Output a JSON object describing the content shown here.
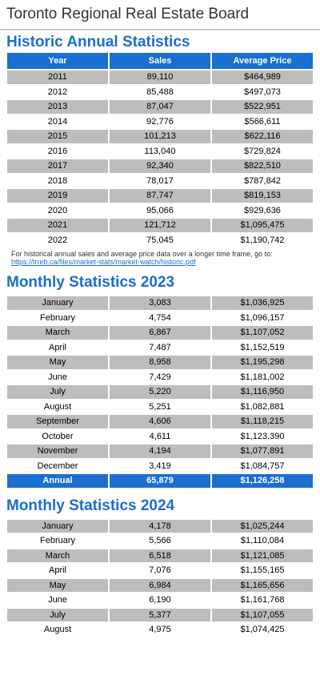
{
  "header": {
    "title": "Toronto Regional Real Estate Board"
  },
  "historic": {
    "title": "Historic Annual Statistics",
    "columns": [
      "Year",
      "Sales",
      "Average Price"
    ],
    "rows": [
      [
        "2011",
        "89,110",
        "$464,989"
      ],
      [
        "2012",
        "85,488",
        "$497,073"
      ],
      [
        "2013",
        "87,047",
        "$522,951"
      ],
      [
        "2014",
        "92,776",
        "$566,611"
      ],
      [
        "2015",
        "101,213",
        "$622,116"
      ],
      [
        "2016",
        "113,040",
        "$729,824"
      ],
      [
        "2017",
        "92,340",
        "$822,510"
      ],
      [
        "2018",
        "78,017",
        "$787,842"
      ],
      [
        "2019",
        "87,747",
        "$819,153"
      ],
      [
        "2020",
        "95,066",
        "$929,636"
      ],
      [
        "2021",
        "121,712",
        "$1,095,475"
      ],
      [
        "2022",
        "75,045",
        "$1,190,742"
      ]
    ],
    "note": "For historical annual sales and average price data over a longer time frame, go to:",
    "link": "https://trreb.ca/files/market-stats/market-watch/historic.pdf"
  },
  "monthly2023": {
    "title": "Monthly Statistics 2023",
    "rows": [
      [
        "January",
        "3,083",
        "$1,036,925"
      ],
      [
        "February",
        "4,754",
        "$1,096,157"
      ],
      [
        "March",
        "6,867",
        "$1,107,052"
      ],
      [
        "April",
        "7,487",
        "$1,152,519"
      ],
      [
        "May",
        "8,958",
        "$1,195,298"
      ],
      [
        "June",
        "7,429",
        "$1,181,002"
      ],
      [
        "July",
        "5,220",
        "$1,116,950"
      ],
      [
        "August",
        "5,251",
        "$1,082,881"
      ],
      [
        "September",
        "4,606",
        "$1,118,215"
      ],
      [
        "October",
        "4,611",
        "$1,123,390"
      ],
      [
        "November",
        "4,194",
        "$1,077,891"
      ],
      [
        "December",
        "3,419",
        "$1,084,757"
      ]
    ],
    "annual": [
      "Annual",
      "65,879",
      "$1,126,258"
    ]
  },
  "monthly2024": {
    "title": "Monthly Statistics 2024",
    "rows": [
      [
        "January",
        "4,178",
        "$1,025,244"
      ],
      [
        "February",
        "5,566",
        "$1,110,084"
      ],
      [
        "March",
        "6,518",
        "$1,121,085"
      ],
      [
        "April",
        "7,076",
        "$1,155,165"
      ],
      [
        "May",
        "6,984",
        "$1,165,656"
      ],
      [
        "June",
        "6,190",
        "$1,161,768"
      ],
      [
        "July",
        "5,377",
        "$1,107,055"
      ],
      [
        "August",
        "4,975",
        "$1,074,425"
      ]
    ]
  }
}
